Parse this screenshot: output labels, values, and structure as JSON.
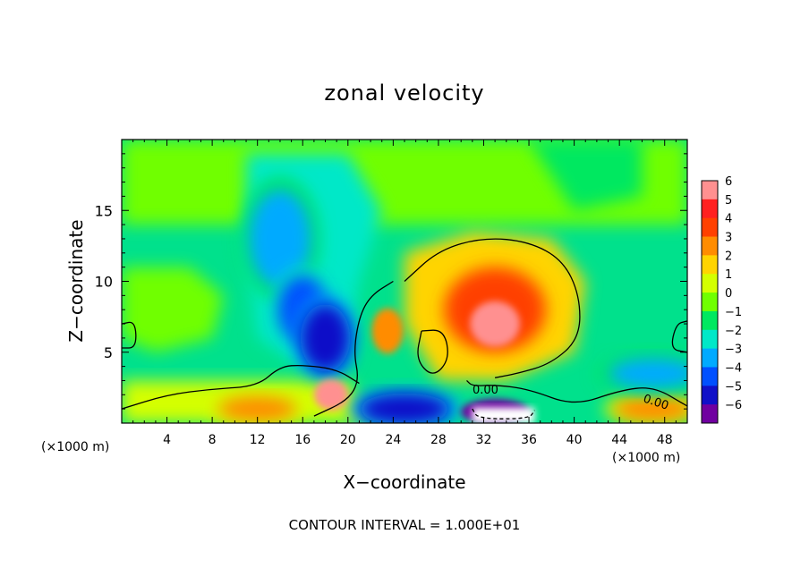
{
  "chart_data": {
    "type": "heatmap",
    "title": "zonal velocity",
    "xlabel": "X−coordinate",
    "ylabel": "Z−coordinate",
    "x_unit_left": "(×1000 m)",
    "x_unit_right": "(×1000 m)",
    "footer": "CONTOUR INTERVAL = 1.000E+01",
    "xlim": [
      0,
      50
    ],
    "ylim": [
      0,
      20
    ],
    "x_ticks": [
      4,
      8,
      12,
      16,
      20,
      24,
      28,
      32,
      36,
      40,
      44,
      48
    ],
    "x_tick_labels": [
      "4",
      "8",
      "12",
      "16",
      "20",
      "24",
      "28",
      "32",
      "36",
      "40",
      "44",
      "48"
    ],
    "y_ticks": [
      5,
      10,
      15
    ],
    "y_tick_labels": [
      "5",
      "10",
      "15"
    ],
    "colorbar": {
      "labels": [
        "6",
        "5",
        "4",
        "3",
        "2",
        "1",
        "0",
        "−1",
        "−2",
        "−3",
        "−4",
        "−5",
        "−6"
      ],
      "values": [
        6,
        5,
        4,
        3,
        2,
        1,
        0,
        -1,
        -2,
        -3,
        -4,
        -5,
        -6
      ],
      "colors": [
        "#ff9090",
        "#ff2020",
        "#ff4000",
        "#ff8c00",
        "#ffd400",
        "#d4ff00",
        "#70ff00",
        "#00e860",
        "#00e8c8",
        "#00aaff",
        "#0050ff",
        "#1010c8",
        "#7000a0"
      ]
    },
    "contour_labels": [
      "0.00",
      "0.00"
    ],
    "background_value": -1,
    "features": [
      {
        "kind": "jet_max",
        "x": 33,
        "z": 7,
        "value": 5.5
      },
      {
        "kind": "jet_core",
        "x": 33,
        "z": 8,
        "value": 4
      },
      {
        "kind": "positive_blob",
        "x": 23.5,
        "z": 6.5,
        "value": 3
      },
      {
        "kind": "negative_core",
        "x": 16,
        "z": 8,
        "value": -4
      },
      {
        "kind": "negative_core",
        "x": 18,
        "z": 6,
        "value": -5
      },
      {
        "kind": "negative_region",
        "x": 14,
        "z": 13,
        "value": -3
      },
      {
        "kind": "surface_max",
        "x": 18.5,
        "z": 2,
        "value": 5.8
      },
      {
        "kind": "surface_positive",
        "x": 12,
        "z": 1,
        "value": 3
      },
      {
        "kind": "surface_positive",
        "x": 47,
        "z": 1,
        "value": 3
      },
      {
        "kind": "surface_negative",
        "x": 25,
        "z": 1,
        "value": -5
      },
      {
        "kind": "surface_negative",
        "x": 47,
        "z": 3.5,
        "value": -3
      },
      {
        "kind": "surface_min",
        "x": 33,
        "z": 0.8,
        "value": -6
      }
    ]
  }
}
